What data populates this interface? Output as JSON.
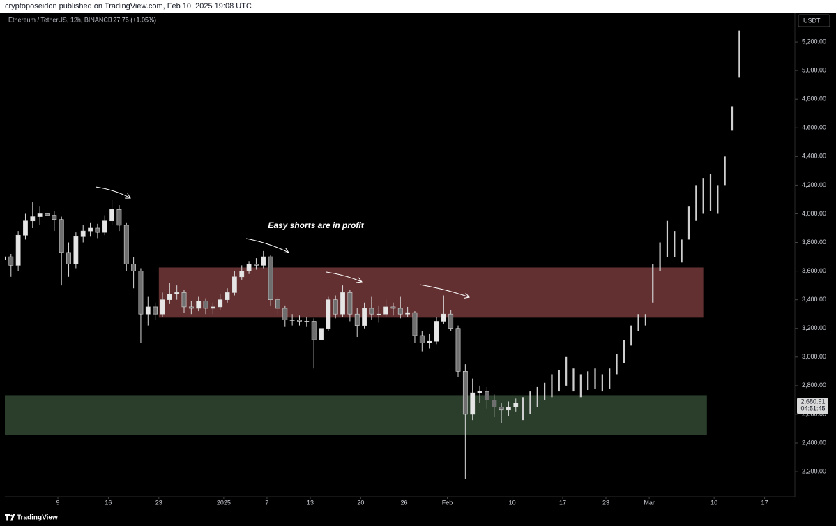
{
  "header": {
    "publisher": "cryptoposeidon published on TradingView.com, Feb 10, 2025 19:08 UTC",
    "symbol": "Ethereum / TetherUS, 12h, BINANCE",
    "change": "+27.75 (+1.05%)",
    "currency": "USDT",
    "brand": "TradingView"
  },
  "chart_data": {
    "type": "candlestick",
    "annotation": "Easy shorts are in profit",
    "xlim": [
      1.65,
      111.2
    ],
    "ylim": [
      2025,
      5400
    ],
    "xticks": [
      9,
      16,
      23,
      {
        "value": 32,
        "label": "2025"
      },
      {
        "value": 38,
        "label": "7"
      },
      {
        "value": 44,
        "label": "13"
      },
      {
        "value": 51,
        "label": "20"
      },
      {
        "value": 57,
        "label": "26"
      },
      {
        "value": 63,
        "label": "Feb"
      },
      {
        "value": 72,
        "label": "10"
      },
      {
        "value": 79,
        "label": "17"
      },
      {
        "value": 85,
        "label": "23"
      },
      {
        "value": 91,
        "label": "Mar"
      },
      {
        "value": 100,
        "label": "10"
      },
      {
        "value": 107,
        "label": "17"
      }
    ],
    "yticks": [
      {
        "value": 2200,
        "label": "2,200.00"
      },
      {
        "value": 2400,
        "label": "2,400.00"
      },
      {
        "value": 2600,
        "label": "2,600.00"
      },
      {
        "value": 2800,
        "label": "2,800.00"
      },
      {
        "value": 3000,
        "label": "3,000.00"
      },
      {
        "value": 3200,
        "label": "3,200.00"
      },
      {
        "value": 3400,
        "label": "3,400.00"
      },
      {
        "value": 3600,
        "label": "3,600.00"
      },
      {
        "value": 3800,
        "label": "3,800.00"
      },
      {
        "value": 4000,
        "label": "4,000.00"
      },
      {
        "value": 4200,
        "label": "4,200.00"
      },
      {
        "value": 4400,
        "label": "4,400.00"
      },
      {
        "value": 4600,
        "label": "4,600.00"
      },
      {
        "value": 4800,
        "label": "4,800.00"
      },
      {
        "value": 5000,
        "label": "5,000.00"
      },
      {
        "value": 5200,
        "label": "5,200.00"
      }
    ],
    "grid": false,
    "up_color": "#e6e6e6",
    "down_color": "#6f6f6f",
    "candles": {
      "x": [
        1.5,
        2.5,
        3.5,
        4.5,
        5.5,
        6.5,
        7.5,
        8.5,
        9.5,
        10.5,
        11.5,
        12.5,
        13.5,
        14.5,
        15.5,
        16.5,
        17.5,
        18.5,
        19.5,
        20.5,
        21.5,
        22.5,
        23.5,
        24.5,
        25.5,
        26.5,
        27.5,
        28.5,
        29.5,
        30.5,
        31.5,
        32.5,
        33.5,
        34.5,
        35.5,
        36.5,
        37.5,
        38.5,
        39.5,
        40.5,
        41.5,
        42.5,
        43.5,
        44.5,
        45.5,
        46.5,
        47.5,
        48.5,
        49.5,
        50.5,
        51.5,
        52.5,
        53.5,
        54.5,
        55.5,
        56.5,
        57.5,
        58.5,
        59.5,
        60.5,
        61.5,
        62.5,
        63.5,
        64.5,
        65.5,
        66.5,
        67.5,
        68.5,
        69.5,
        70.5,
        71.5,
        72.5
      ],
      "open": [
        3680,
        3700,
        3640,
        3850,
        3950,
        3980,
        4000,
        3990,
        3960,
        3730,
        3650,
        3840,
        3880,
        3900,
        3870,
        3950,
        4030,
        3920,
        3650,
        3600,
        3300,
        3350,
        3300,
        3400,
        3440,
        3450,
        3350,
        3340,
        3390,
        3340,
        3350,
        3400,
        3450,
        3560,
        3600,
        3650,
        3640,
        3700,
        3400,
        3340,
        3260,
        3260,
        3250,
        3250,
        3120,
        3200,
        3400,
        3300,
        3450,
        3300,
        3220,
        3340,
        3300,
        3300,
        3350,
        3340,
        3300,
        3310,
        3150,
        3100,
        3110,
        3250,
        3300,
        3200,
        2900,
        2600,
        2750,
        2760,
        2700,
        2650,
        2630,
        2650
      ],
      "high": [
        3740,
        3720,
        3880,
        4000,
        4080,
        4050,
        4040,
        4020,
        3980,
        3800,
        3870,
        3920,
        3940,
        3930,
        3990,
        4100,
        4060,
        3940,
        3700,
        3620,
        3420,
        3380,
        3450,
        3520,
        3500,
        3470,
        3390,
        3420,
        3410,
        3380,
        3440,
        3480,
        3600,
        3640,
        3670,
        3690,
        3740,
        3710,
        3420,
        3360,
        3300,
        3290,
        3280,
        3270,
        3250,
        3420,
        3430,
        3500,
        3470,
        3340,
        3380,
        3420,
        3360,
        3400,
        3380,
        3420,
        3350,
        3320,
        3180,
        3160,
        3280,
        3430,
        3330,
        3220,
        2950,
        2850,
        2800,
        2790,
        2740,
        2680,
        2690,
        2710
      ],
      "low": [
        3620,
        3560,
        3600,
        3820,
        3900,
        3920,
        3940,
        3880,
        3500,
        3560,
        3620,
        3800,
        3840,
        3830,
        3850,
        3920,
        3880,
        3600,
        3480,
        3100,
        3220,
        3260,
        3280,
        3370,
        3400,
        3310,
        3300,
        3320,
        3300,
        3300,
        3330,
        3380,
        3430,
        3540,
        3580,
        3610,
        3620,
        3360,
        3300,
        3210,
        3220,
        3220,
        3210,
        2920,
        3100,
        3180,
        3270,
        3280,
        3250,
        3140,
        3200,
        3260,
        3240,
        3280,
        3290,
        3270,
        3280,
        3100,
        3040,
        3060,
        3090,
        3230,
        3180,
        2860,
        2150,
        2560,
        2680,
        2640,
        2580,
        2540,
        2590,
        2620
      ],
      "close": [
        3700,
        3640,
        3850,
        3950,
        3980,
        4000,
        3990,
        3960,
        3730,
        3650,
        3840,
        3880,
        3900,
        3870,
        3950,
        4030,
        3920,
        3650,
        3600,
        3300,
        3350,
        3300,
        3400,
        3440,
        3450,
        3350,
        3340,
        3390,
        3340,
        3350,
        3400,
        3450,
        3560,
        3600,
        3650,
        3640,
        3700,
        3400,
        3340,
        3260,
        3260,
        3250,
        3250,
        3120,
        3200,
        3400,
        3300,
        3450,
        3300,
        3220,
        3340,
        3300,
        3300,
        3350,
        3340,
        3300,
        3310,
        3150,
        3100,
        3110,
        3250,
        3300,
        3200,
        2900,
        2600,
        2750,
        2760,
        2700,
        2650,
        2630,
        2650,
        2680.91
      ]
    },
    "projection": {
      "color": "#cfcfcf",
      "x": [
        73.5,
        74.5,
        75.5,
        76.5,
        77.5,
        78.5,
        79.5,
        80.5,
        81.5,
        82.5,
        83.5,
        84.5,
        85.5,
        86.5,
        87.5,
        88.5,
        89.5,
        90.5,
        91.5,
        92.5,
        93.5,
        94.5,
        95.5,
        96.5,
        97.5,
        98.5,
        99.5,
        100.5,
        101.5,
        102.5,
        103.5
      ],
      "high": [
        2720,
        2760,
        2790,
        2820,
        2880,
        2910,
        3000,
        2920,
        2880,
        2900,
        2920,
        2880,
        2920,
        3020,
        3120,
        3220,
        3300,
        3300,
        3650,
        3800,
        3950,
        3880,
        3820,
        4050,
        4200,
        4250,
        4280,
        4200,
        4400,
        4750,
        5280
      ],
      "low": [
        2560,
        2600,
        2650,
        2700,
        2720,
        2760,
        2800,
        2760,
        2720,
        2770,
        2780,
        2760,
        2780,
        2880,
        2960,
        3080,
        3180,
        3220,
        3380,
        3600,
        3700,
        3700,
        3660,
        3820,
        3950,
        4000,
        4020,
        4000,
        4200,
        4580,
        4950
      ]
    },
    "zones": [
      {
        "from": 23,
        "to": 98.5,
        "low": 3275,
        "high": 3625,
        "color": "#633031"
      },
      {
        "from": 1.65,
        "to": 99,
        "low": 2457,
        "high": 2734,
        "color": "#2a3e2b"
      }
    ],
    "last_price": {
      "value": 2680.91,
      "label": "2,680.91"
    },
    "countdown": "04:51:45"
  }
}
